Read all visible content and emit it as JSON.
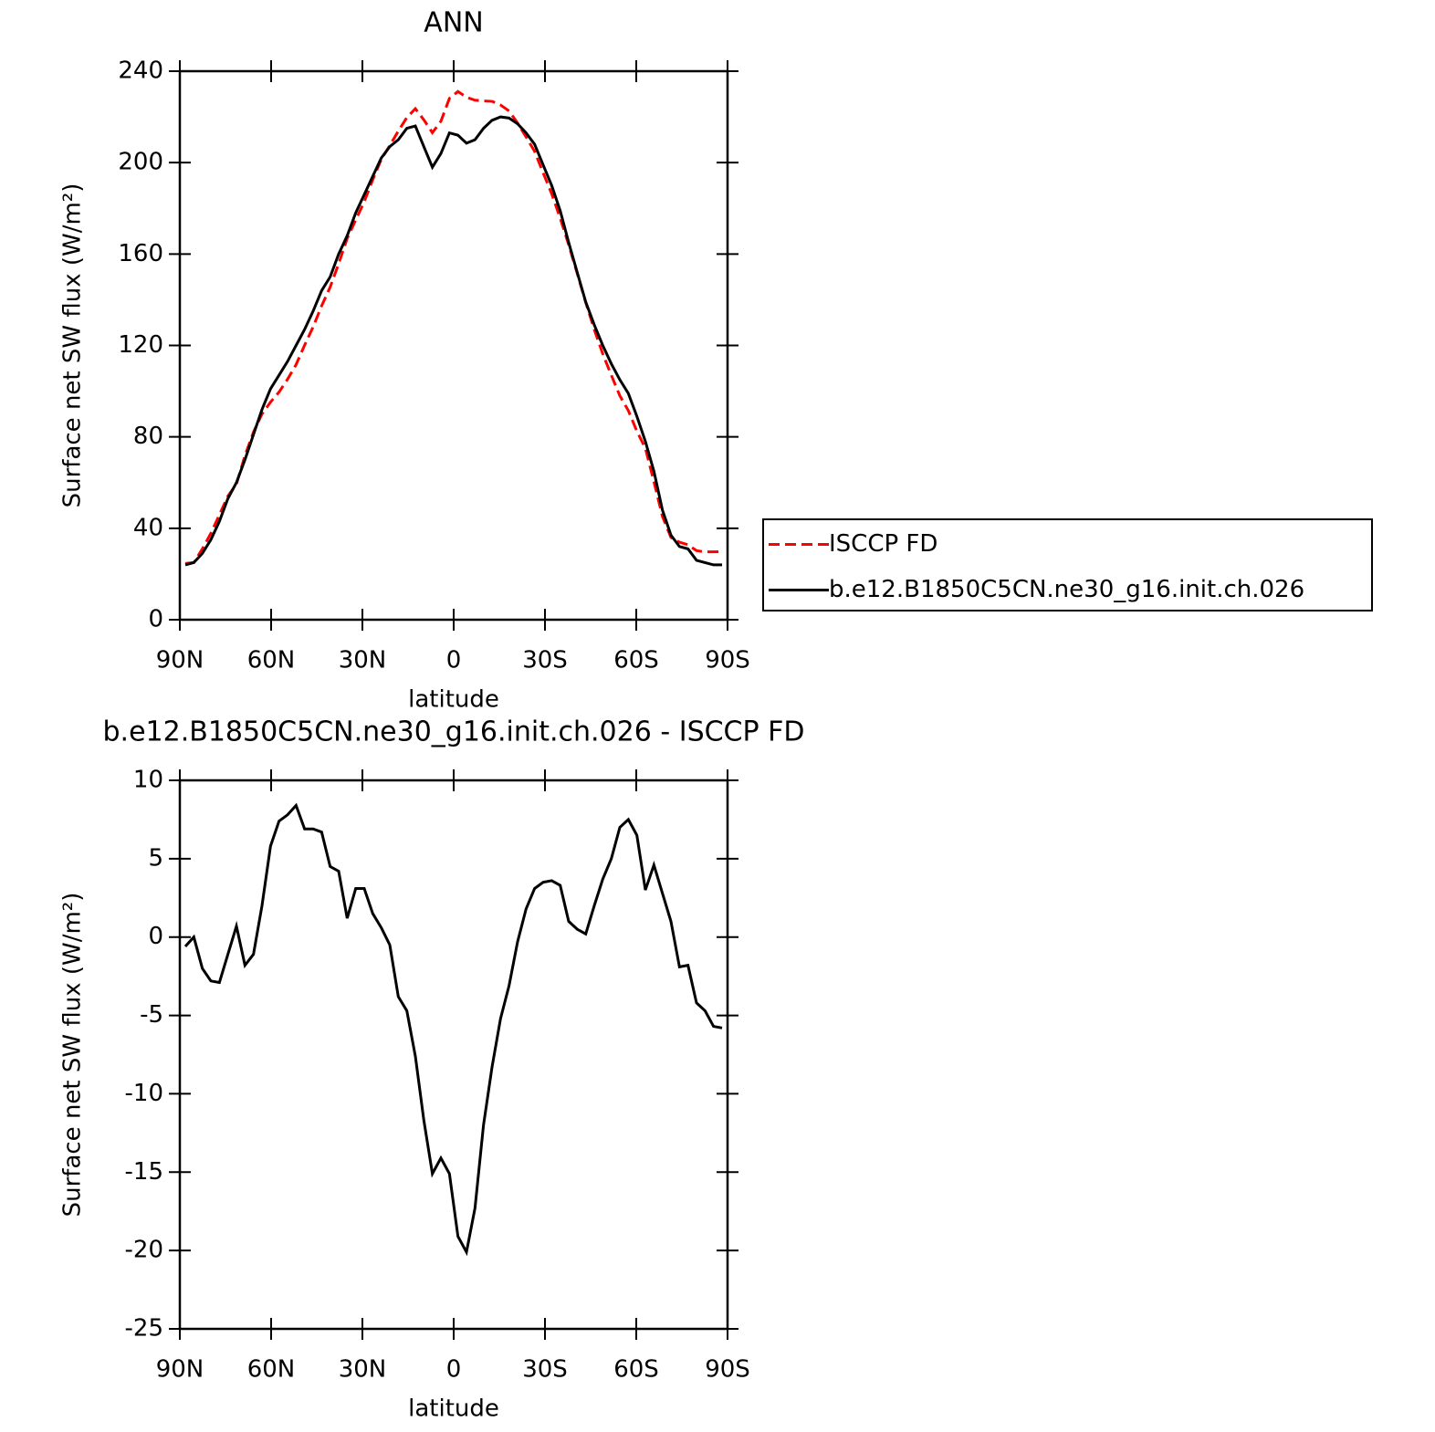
{
  "chart_data": [
    {
      "type": "line",
      "title": "ANN",
      "xlabel": "latitude",
      "ylabel": "Surface net SW flux (W/m²)",
      "x": [
        88.2,
        85.4,
        82.6,
        79.8,
        77,
        74.2,
        71.4,
        68.6,
        65.8,
        63,
        60.2,
        57.4,
        54.6,
        51.8,
        49,
        46.2,
        43.4,
        40.6,
        37.8,
        35,
        32.2,
        29.4,
        26.6,
        23.8,
        21,
        18.2,
        15.4,
        12.6,
        9.8,
        7,
        4.2,
        1.4,
        -1.4,
        -4.2,
        -7,
        -9.8,
        -12.6,
        -15.4,
        -18.2,
        -21,
        -23.8,
        -26.6,
        -29.4,
        -32.2,
        -35,
        -37.8,
        -40.6,
        -43.4,
        -46.2,
        -49,
        -51.8,
        -54.6,
        -57.4,
        -60.2,
        -63,
        -65.8,
        -68.6,
        -71.4,
        -74.2,
        -77,
        -79.8,
        -82.6,
        -85.4,
        -88.2
      ],
      "series": [
        {
          "name": "ISCCP FD",
          "color": "#ff0000",
          "dash": "dashed",
          "values": [
            24.6,
            25,
            31,
            37.8,
            45.9,
            54.1,
            59.3,
            71.8,
            82.1,
            90,
            95.2,
            99.6,
            105.2,
            111.6,
            120.1,
            128.1,
            137.3,
            145.5,
            155.8,
            166.8,
            174.9,
            182.9,
            192.5,
            201.4,
            207.5,
            213.8,
            219.7,
            223.6,
            218.7,
            213.1,
            218.1,
            228.1,
            231.1,
            228.6,
            227.3,
            227,
            226.8,
            225.2,
            222.6,
            217.3,
            211.2,
            204.9,
            195.5,
            186.4,
            175.7,
            164,
            151.5,
            138.8,
            127,
            116.3,
            107,
            98,
            91.5,
            82.5,
            75,
            60.4,
            45.2,
            36,
            33.9,
            32.8,
            30.2,
            29.7,
            29.7,
            29.8
          ]
        },
        {
          "name": "b.e12.B1850C5CN.ne30_g16.init.ch.026",
          "color": "#000000",
          "dash": "solid",
          "values": [
            24,
            25,
            29,
            35,
            43,
            53,
            60,
            70,
            81,
            92,
            101,
            107,
            113,
            120,
            127,
            135,
            144,
            150,
            160,
            168,
            178,
            186,
            194,
            202,
            207,
            210,
            215,
            216,
            207,
            198,
            204,
            213,
            212,
            208.5,
            210,
            215,
            218.5,
            220,
            219.5,
            217,
            213,
            208,
            199,
            190,
            179,
            165,
            152,
            139,
            129,
            120,
            112,
            105,
            99,
            89,
            78,
            65,
            48,
            37,
            32,
            31,
            26,
            25,
            24,
            24
          ]
        }
      ],
      "xlim": [
        90,
        -90
      ],
      "xticks": [
        {
          "value": 90,
          "label": "90N"
        },
        {
          "value": 60,
          "label": "60N"
        },
        {
          "value": 30,
          "label": "30N"
        },
        0,
        {
          "value": -30,
          "label": "30S"
        },
        {
          "value": -60,
          "label": "60S"
        },
        {
          "value": -90,
          "label": "90S"
        }
      ],
      "ylim": [
        0,
        240
      ],
      "yticks": [
        0,
        40,
        80,
        120,
        160,
        200,
        240
      ],
      "legend": "outside-right"
    },
    {
      "type": "line",
      "title": "b.e12.B1850C5CN.ne30_g16.init.ch.026 - ISCCP FD",
      "xlabel": "latitude",
      "ylabel": "Surface net SW flux (W/m²)",
      "x": [
        88.2,
        85.4,
        82.6,
        79.8,
        77,
        74.2,
        71.4,
        68.6,
        65.8,
        63,
        60.2,
        57.4,
        54.6,
        51.8,
        49,
        46.2,
        43.4,
        40.6,
        37.8,
        35,
        32.2,
        29.4,
        26.6,
        23.8,
        21,
        18.2,
        15.4,
        12.6,
        9.8,
        7,
        4.2,
        1.4,
        -1.4,
        -4.2,
        -7,
        -9.8,
        -12.6,
        -15.4,
        -18.2,
        -21,
        -23.8,
        -26.6,
        -29.4,
        -32.2,
        -35,
        -37.8,
        -40.6,
        -43.4,
        -46.2,
        -49,
        -51.8,
        -54.6,
        -57.4,
        -60.2,
        -63,
        -65.8,
        -68.6,
        -71.4,
        -74.2,
        -77,
        -79.8,
        -82.6,
        -85.4,
        -88.2
      ],
      "series": [
        {
          "color": "#000000",
          "dash": "solid",
          "values": [
            -0.6,
            0,
            -2,
            -2.8,
            -2.9,
            -1.1,
            0.7,
            -1.8,
            -1.1,
            2,
            5.8,
            7.4,
            7.8,
            8.4,
            6.9,
            6.9,
            6.7,
            4.5,
            4.2,
            1.2,
            3.1,
            3.1,
            1.5,
            0.6,
            -0.5,
            -3.8,
            -4.7,
            -7.6,
            -11.7,
            -15.1,
            -14.1,
            -15.1,
            -19.1,
            -20.1,
            -17.3,
            -12,
            -8.3,
            -5.2,
            -3.1,
            -0.3,
            1.8,
            3.1,
            3.5,
            3.6,
            3.3,
            1,
            0.5,
            0.2,
            2,
            3.7,
            5,
            7,
            7.5,
            6.5,
            3,
            4.6,
            2.8,
            1,
            -1.9,
            -1.8,
            -4.2,
            -4.7,
            -5.7,
            -5.8
          ]
        }
      ],
      "xlim": [
        90,
        -90
      ],
      "xticks": [
        {
          "value": 90,
          "label": "90N"
        },
        {
          "value": 60,
          "label": "60N"
        },
        {
          "value": 30,
          "label": "30N"
        },
        0,
        {
          "value": -30,
          "label": "30S"
        },
        {
          "value": -60,
          "label": "60S"
        },
        {
          "value": -90,
          "label": "90S"
        }
      ],
      "ylim": [
        -25,
        10
      ],
      "yticks": [
        -25,
        -20,
        -15,
        -10,
        -5,
        0,
        5,
        10
      ]
    }
  ]
}
